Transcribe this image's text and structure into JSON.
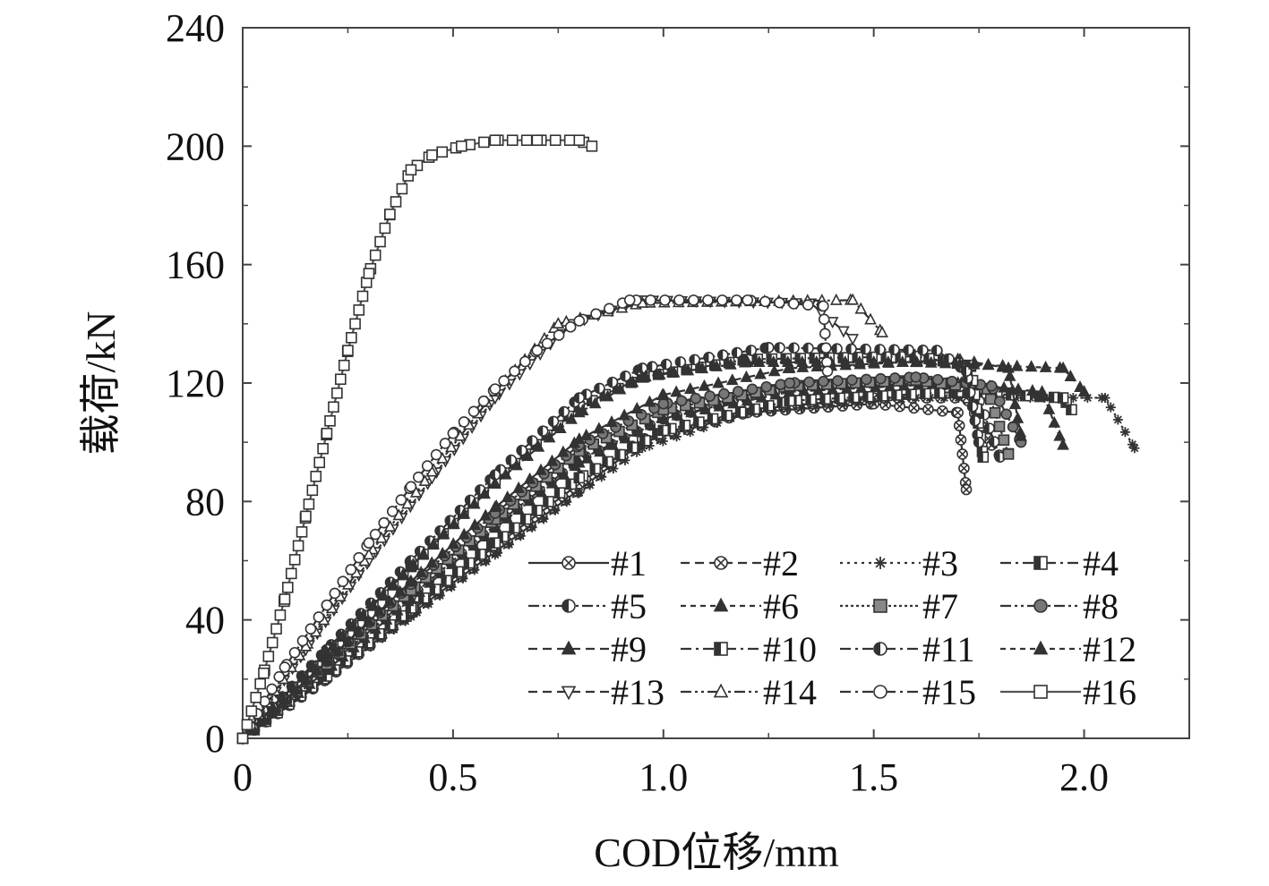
{
  "chart_data": {
    "type": "line",
    "title": "",
    "xlabel": "COD位移/mm",
    "ylabel": "载荷/kN",
    "xlim": [
      0,
      2.25
    ],
    "ylim": [
      0,
      240
    ],
    "x_ticks": [
      0,
      0.5,
      1.0,
      1.5,
      2.0
    ],
    "x_tick_labels": [
      "0",
      "0.5",
      "1.0",
      "1.5",
      "2.0"
    ],
    "y_ticks": [
      0,
      40,
      80,
      120,
      160,
      200,
      240
    ],
    "y_tick_labels": [
      "0",
      "40",
      "80",
      "120",
      "160",
      "200",
      "240"
    ],
    "grid": false,
    "legend_position": "bottom-right",
    "line_color": "#333333",
    "series": [
      {
        "name": "#1",
        "marker": "circle-x",
        "dash": "solid",
        "x": [
          0,
          0.2,
          0.4,
          0.6,
          0.8,
          0.95,
          1.2,
          1.5,
          1.7,
          1.72
        ],
        "y": [
          0,
          20,
          42,
          63,
          84,
          100,
          110,
          113,
          110,
          84
        ]
      },
      {
        "name": "#2",
        "marker": "circle-x",
        "dash": "dashed",
        "x": [
          0,
          0.2,
          0.4,
          0.6,
          0.8,
          0.95,
          1.2,
          1.5,
          1.72,
          1.78
        ],
        "y": [
          0,
          21,
          43,
          65,
          86,
          101,
          111,
          115,
          115,
          99
        ]
      },
      {
        "name": "#3",
        "marker": "star",
        "dash": "dotted",
        "x": [
          0,
          0.2,
          0.4,
          0.6,
          0.8,
          0.95,
          1.2,
          1.6,
          2.05,
          2.12
        ],
        "y": [
          0,
          20,
          41,
          62,
          83,
          98,
          110,
          115,
          115,
          98
        ]
      },
      {
        "name": "#4",
        "marker": "half-square",
        "dash": "dashdot",
        "x": [
          0,
          0.2,
          0.4,
          0.6,
          0.8,
          1.0,
          1.3,
          1.7,
          1.95,
          1.97
        ],
        "y": [
          0,
          21,
          44,
          66,
          88,
          104,
          114,
          117,
          115,
          111
        ]
      },
      {
        "name": "#5",
        "marker": "half-circle",
        "dash": "dashdotdot",
        "x": [
          0,
          0.2,
          0.4,
          0.6,
          0.8,
          1.0,
          1.3,
          1.6,
          1.74,
          1.8
        ],
        "y": [
          0,
          24,
          48,
          72,
          94,
          108,
          118,
          121,
          118,
          95
        ]
      },
      {
        "name": "#6",
        "marker": "triangle-filled",
        "dash": "shortdash",
        "x": [
          0,
          0.2,
          0.4,
          0.6,
          0.8,
          1.0,
          1.3,
          1.7,
          1.9,
          1.95
        ],
        "y": [
          0,
          23,
          47,
          71,
          93,
          108,
          117,
          120,
          117,
          99
        ]
      },
      {
        "name": "#7",
        "marker": "square-filled",
        "dash": "dotted-thick",
        "x": [
          0,
          0.2,
          0.4,
          0.6,
          0.8,
          1.0,
          1.3,
          1.6,
          1.77,
          1.82
        ],
        "y": [
          0,
          25,
          50,
          74,
          97,
          111,
          119,
          121,
          118,
          96
        ]
      },
      {
        "name": "#8",
        "marker": "circle-filled",
        "dash": "dashdotdot",
        "x": [
          0,
          0.2,
          0.4,
          0.6,
          0.8,
          1.0,
          1.3,
          1.6,
          1.78,
          1.85
        ],
        "y": [
          0,
          26,
          52,
          76,
          99,
          113,
          120,
          122,
          119,
          100
        ]
      },
      {
        "name": "#9",
        "marker": "triangle-filled",
        "dash": "dashed",
        "x": [
          0,
          0.2,
          0.4,
          0.6,
          0.8,
          1.0,
          1.3,
          1.7,
          1.82,
          1.85
        ],
        "y": [
          0,
          26,
          53,
          78,
          101,
          116,
          125,
          128,
          125,
          102
        ]
      },
      {
        "name": "#10",
        "marker": "half-square",
        "dash": "dashdot",
        "x": [
          0,
          0.2,
          0.4,
          0.6,
          0.8,
          0.95,
          1.2,
          1.6,
          1.73,
          1.76
        ],
        "y": [
          0,
          29,
          58,
          87,
          112,
          122,
          128,
          129,
          126,
          95
        ]
      },
      {
        "name": "#11",
        "marker": "half-circle",
        "dash": "dashdot",
        "x": [
          0,
          0.2,
          0.4,
          0.6,
          0.8,
          0.95,
          1.25,
          1.65,
          1.72,
          1.75
        ],
        "y": [
          0,
          30,
          60,
          89,
          115,
          125,
          132,
          131,
          124,
          100
        ]
      },
      {
        "name": "#12",
        "marker": "triangle-filled",
        "dash": "shortdash",
        "x": [
          0,
          0.2,
          0.4,
          0.6,
          0.8,
          0.95,
          1.2,
          1.6,
          1.95,
          2.0
        ],
        "y": [
          0,
          29,
          58,
          86,
          110,
          122,
          127,
          127,
          125,
          117
        ]
      },
      {
        "name": "#13",
        "marker": "triangle-down",
        "dash": "dashed",
        "x": [
          0,
          0.15,
          0.3,
          0.45,
          0.6,
          0.78,
          0.95,
          1.35,
          1.45
        ],
        "y": [
          0,
          30,
          60,
          88,
          115,
          140,
          148,
          147,
          135
        ]
      },
      {
        "name": "#14",
        "marker": "triangle-open",
        "dash": "dashdotdot",
        "x": [
          0,
          0.15,
          0.3,
          0.45,
          0.6,
          0.75,
          0.95,
          1.45,
          1.52
        ],
        "y": [
          0,
          31,
          62,
          90,
          117,
          140,
          147,
          148,
          137
        ]
      },
      {
        "name": "#15",
        "marker": "circle-open",
        "dash": "dashdot",
        "x": [
          0,
          0.1,
          0.2,
          0.3,
          0.4,
          0.5,
          0.6,
          0.7,
          0.8,
          0.92,
          1.2,
          1.38,
          1.39
        ],
        "y": [
          0,
          24,
          45,
          66,
          85,
          103,
          118,
          131,
          141,
          148,
          148,
          146,
          124
        ]
      },
      {
        "name": "#16",
        "marker": "square-open",
        "dash": "solid-gray",
        "x": [
          0,
          0.05,
          0.1,
          0.15,
          0.2,
          0.25,
          0.3,
          0.35,
          0.4,
          0.45,
          0.52,
          0.6,
          0.7,
          0.8,
          0.83
        ],
        "y": [
          0,
          22,
          47,
          75,
          103,
          131,
          157,
          177,
          192,
          197,
          200,
          202,
          202,
          202,
          200
        ]
      }
    ]
  }
}
